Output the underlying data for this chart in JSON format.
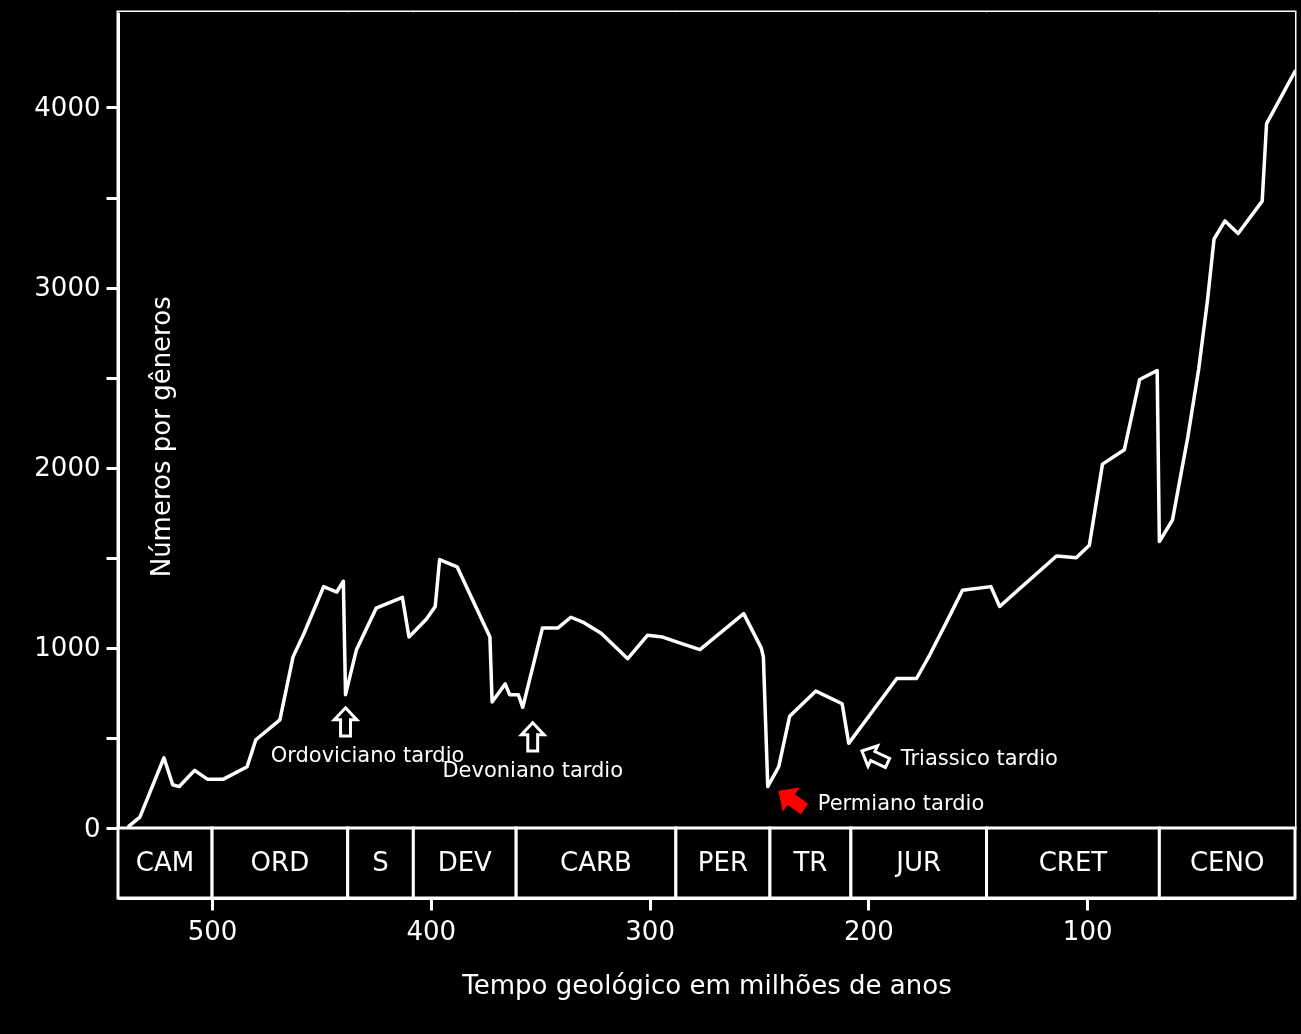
{
  "chart_data": {
    "type": "line",
    "xlabel": "Tempo geológico em milhões de anos",
    "ylabel": "Números por gêneros",
    "x": [
      538,
      533,
      522,
      518,
      515,
      508,
      502,
      495,
      484,
      480,
      469,
      463,
      458,
      449,
      443,
      440,
      439,
      434,
      425,
      413,
      410,
      402,
      398,
      396,
      388,
      373,
      372,
      366,
      364,
      360,
      358,
      349,
      342,
      336,
      330,
      322,
      310,
      301,
      294,
      287,
      277,
      257,
      249,
      248,
      246,
      241,
      236,
      224,
      212,
      209,
      187,
      178,
      172,
      164,
      157,
      144,
      140,
      114,
      105,
      99,
      93,
      83,
      76,
      68,
      67,
      61,
      54,
      49,
      45,
      42,
      37,
      31,
      20,
      18,
      5
    ],
    "series": [
      {
        "color": "#ffffff",
        "values": [
          10,
          60,
          390,
          240,
          230,
          320,
          270,
          270,
          340,
          490,
          600,
          950,
          1080,
          1340,
          1310,
          1370,
          740,
          990,
          1220,
          1280,
          1060,
          1160,
          1230,
          1490,
          1450,
          1060,
          700,
          800,
          740,
          740,
          670,
          1110,
          1110,
          1170,
          1140,
          1080,
          940,
          1070,
          1060,
          1030,
          990,
          1190,
          1000,
          950,
          230,
          340,
          620,
          760,
          690,
          470,
          830,
          830,
          960,
          1150,
          1320,
          1340,
          1230,
          1510,
          1500,
          1570,
          2020,
          2100,
          2490,
          2540,
          1590,
          1710,
          2170,
          2550,
          2930,
          3270,
          3370,
          3300,
          3480,
          3910,
          4200
        ]
      }
    ],
    "xlim": [
      543,
      5
    ],
    "xticks": [
      500,
      400,
      300,
      200,
      100
    ],
    "ylim": [
      0,
      4530
    ],
    "yticks": [
      0,
      {
        "value": 500,
        "label": null
      },
      1000,
      {
        "value": 1500,
        "label": null
      },
      2000,
      {
        "value": 2500,
        "label": null
      },
      3000,
      {
        "value": 3500,
        "label": null
      },
      4000
    ],
    "grid": false,
    "bands": [
      {
        "axis": "x",
        "from": 543,
        "to": 500,
        "label": "CAM"
      },
      {
        "axis": "x",
        "from": 500,
        "to": 438,
        "label": "ORD"
      },
      {
        "axis": "x",
        "from": 438,
        "to": 408,
        "label": "S"
      },
      {
        "axis": "x",
        "from": 408,
        "to": 361,
        "label": "DEV"
      },
      {
        "axis": "x",
        "from": 361,
        "to": 288,
        "label": "CARB"
      },
      {
        "axis": "x",
        "from": 288,
        "to": 245,
        "label": "PER"
      },
      {
        "axis": "x",
        "from": 245,
        "to": 208,
        "label": "TR"
      },
      {
        "axis": "x",
        "from": 208,
        "to": 146,
        "label": "JUR"
      },
      {
        "axis": "x",
        "from": 146,
        "to": 67,
        "label": "CRET"
      },
      {
        "axis": "x",
        "from": 67,
        "to": 5,
        "label": "CENO"
      }
    ],
    "annotations": [
      {
        "text": "Ordoviciano tardio",
        "x": 439,
        "y": 744
      },
      {
        "text": "Devoniano tardio",
        "x": 358,
        "y": 672
      },
      {
        "text": "Permiano tardio",
        "x": 246,
        "y": 233
      },
      {
        "text": "Triassico tardio",
        "x": 209,
        "y": 472
      }
    ]
  }
}
